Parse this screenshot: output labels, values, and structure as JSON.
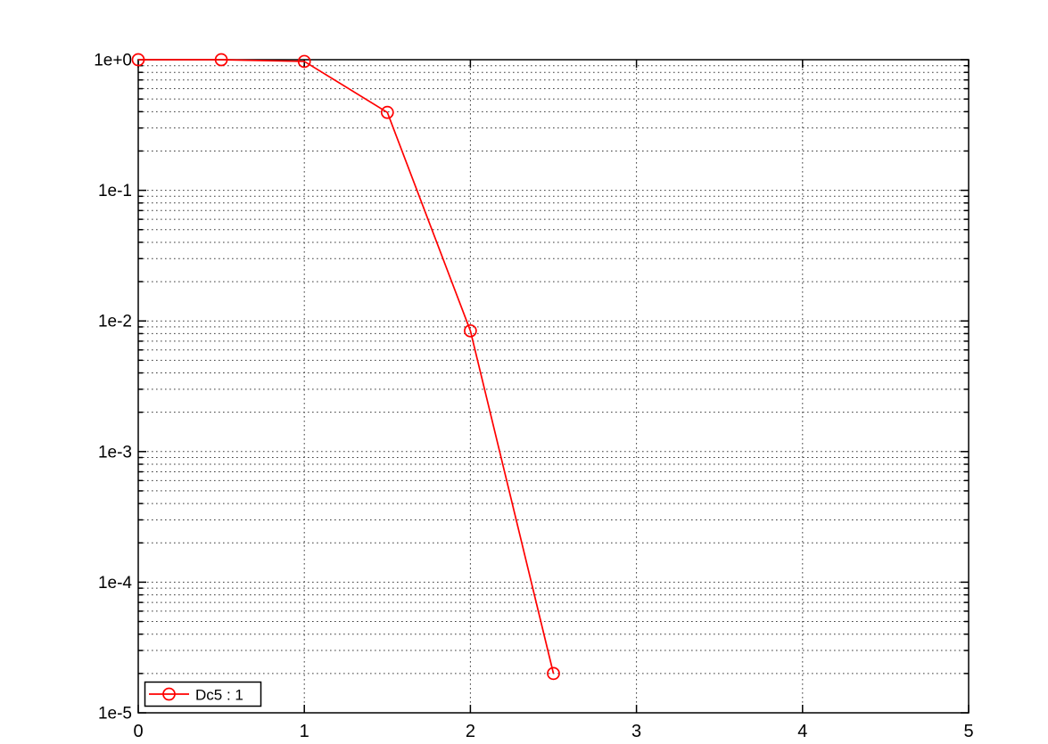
{
  "window": {
    "background": "#ffffff"
  },
  "chart_data": {
    "type": "line",
    "title": "",
    "xlabel": "",
    "ylabel": "",
    "x": [
      0,
      0.5,
      1,
      1.5,
      2,
      2.5
    ],
    "series": [
      {
        "name": "Dc5 : 1",
        "color": "#ff0000",
        "marker": "open-circle",
        "values": [
          1.0,
          1.0,
          0.97,
          0.395,
          0.0084,
          2e-05
        ]
      }
    ],
    "x_axis": {
      "scale": "linear",
      "min": 0,
      "max": 5,
      "ticks": [
        0,
        1,
        2,
        3,
        4,
        5
      ]
    },
    "y_axis": {
      "scale": "log",
      "min": 1e-05,
      "max": 1,
      "tick_labels": [
        "1e+0",
        "1e-1",
        "1e-2",
        "1e-3",
        "1e-4",
        "1e-5"
      ]
    },
    "grid": {
      "show": true,
      "style": "dotted",
      "minor": true,
      "color": "#3c3c3c"
    },
    "legend": {
      "position": "bottom-left",
      "entries": [
        "Dc5 : 1"
      ],
      "background": "#ffffff",
      "border_color": "#000000"
    },
    "axis_color": "#000000"
  }
}
